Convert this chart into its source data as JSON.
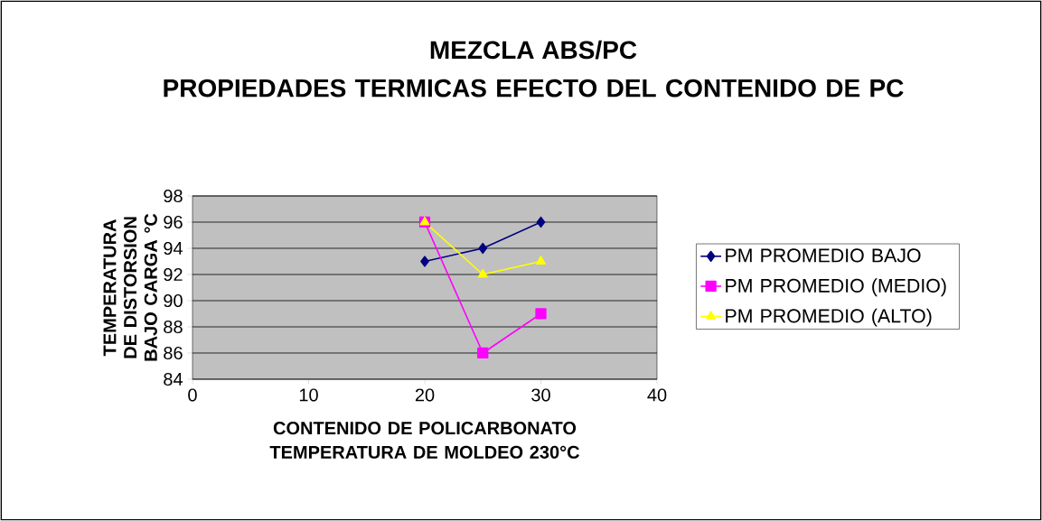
{
  "chart_data": {
    "type": "line",
    "title": "MEZCLA ABS/PC",
    "subtitle": "PROPIEDADES TERMICAS EFECTO DEL CONTENIDO DE PC",
    "xlabel": "CONTENIDO DE POLICARBONATO TEMPERATURA DE MOLDEO 230°C",
    "ylabel": "TEMPERATURA DE DISTORSION BAJO CARGA °C",
    "x": [
      20,
      25,
      30
    ],
    "xlim": [
      0,
      40
    ],
    "xticks": [
      0,
      10,
      20,
      30,
      40
    ],
    "ylim": [
      84,
      98
    ],
    "yticks": [
      84,
      86,
      88,
      90,
      92,
      94,
      96,
      98
    ],
    "grid": "y",
    "legend": "right",
    "series": [
      {
        "name": "PM PROMEDIO BAJO",
        "color": "#000080",
        "marker": "diamond",
        "values": [
          93,
          94,
          96
        ]
      },
      {
        "name": "PM PROMEDIO (MEDIO)",
        "color": "#ff00ff",
        "marker": "square",
        "values": [
          96,
          86,
          89
        ]
      },
      {
        "name": "PM PROMEDIO (ALTO)",
        "color": "#ffff00",
        "marker": "triangle",
        "values": [
          96,
          92,
          93
        ]
      }
    ]
  }
}
